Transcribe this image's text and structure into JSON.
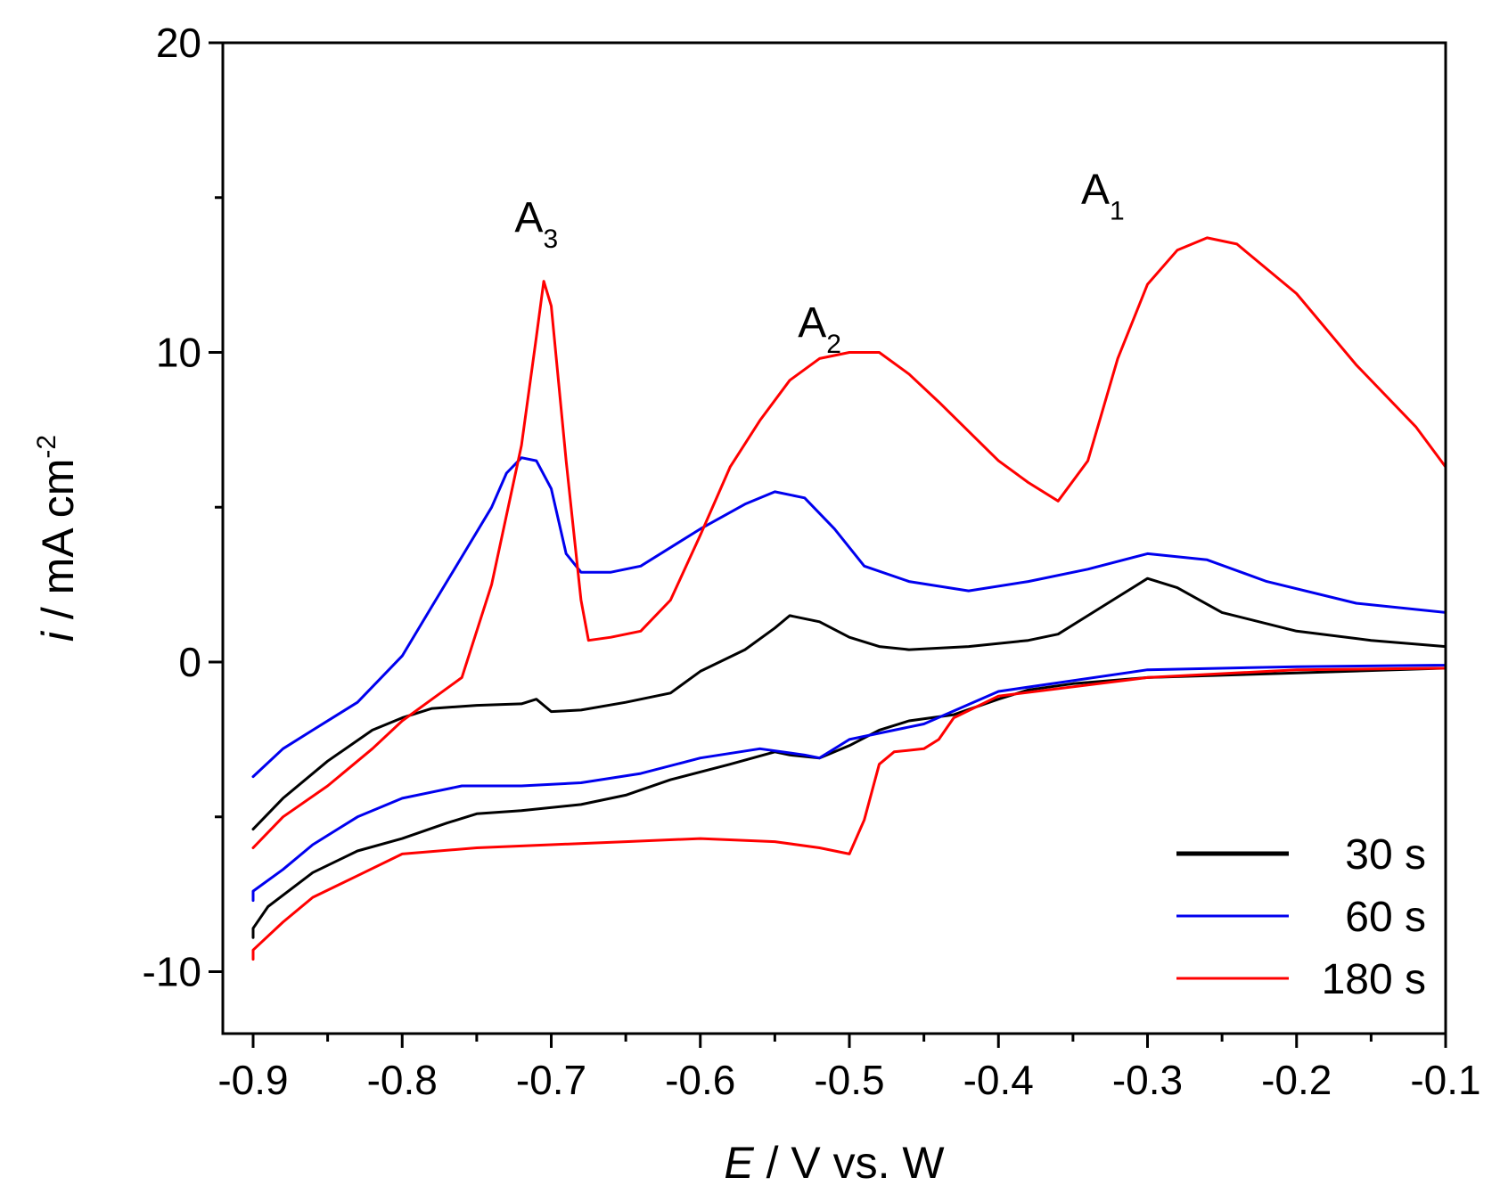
{
  "chart_data": {
    "type": "line",
    "title": "",
    "xlabel": {
      "italic": "E",
      "rest": " / V vs. W"
    },
    "ylabel": {
      "italic": "i",
      "rest": " / mA cm",
      "sup": "-2"
    },
    "xlim": [
      -0.9,
      -0.1
    ],
    "ylim": [
      -12,
      20
    ],
    "xticks": [
      -0.9,
      -0.8,
      -0.7,
      -0.6,
      -0.5,
      -0.4,
      -0.3,
      -0.2,
      -0.1
    ],
    "xtick_labels": [
      "-0.9",
      "-0.8",
      "-0.7",
      "-0.6",
      "-0.5",
      "-0.4",
      "-0.3",
      "-0.2",
      "-0.1"
    ],
    "yticks": [
      -10,
      0,
      10,
      20
    ],
    "ytick_labels": [
      "-10",
      "0",
      "10",
      "20"
    ],
    "grid": false,
    "legend": {
      "position": "bottom-right"
    },
    "annotations": [
      {
        "text": "A",
        "sub": "3",
        "x": -0.71,
        "y": 13.9
      },
      {
        "text": "A",
        "sub": "2",
        "x": -0.52,
        "y": 10.5
      },
      {
        "text": "A",
        "sub": "1",
        "x": -0.33,
        "y": 14.8
      }
    ],
    "series": [
      {
        "name": "30 s",
        "color": "#000000",
        "x": [
          -0.9,
          -0.88,
          -0.85,
          -0.82,
          -0.8,
          -0.78,
          -0.75,
          -0.72,
          -0.71,
          -0.7,
          -0.68,
          -0.65,
          -0.62,
          -0.6,
          -0.57,
          -0.55,
          -0.54,
          -0.52,
          -0.5,
          -0.48,
          -0.46,
          -0.42,
          -0.38,
          -0.36,
          -0.34,
          -0.32,
          -0.3,
          -0.28,
          -0.25,
          -0.2,
          -0.15,
          -0.1,
          -0.1,
          -0.2,
          -0.3,
          -0.35,
          -0.38,
          -0.4,
          -0.43,
          -0.46,
          -0.48,
          -0.5,
          -0.52,
          -0.54,
          -0.55,
          -0.58,
          -0.62,
          -0.65,
          -0.68,
          -0.72,
          -0.75,
          -0.77,
          -0.8,
          -0.83,
          -0.86,
          -0.89,
          -0.9,
          -0.9
        ],
        "y": [
          -5.4,
          -4.4,
          -3.2,
          -2.2,
          -1.8,
          -1.5,
          -1.4,
          -1.35,
          -1.2,
          -1.6,
          -1.55,
          -1.3,
          -1.0,
          -0.3,
          0.4,
          1.1,
          1.5,
          1.3,
          0.8,
          0.5,
          0.4,
          0.5,
          0.7,
          0.9,
          1.5,
          2.1,
          2.7,
          2.4,
          1.6,
          1.0,
          0.7,
          0.5,
          -0.2,
          -0.35,
          -0.5,
          -0.7,
          -0.9,
          -1.2,
          -1.7,
          -1.9,
          -2.2,
          -2.7,
          -3.1,
          -3.0,
          -2.9,
          -3.3,
          -3.8,
          -4.3,
          -4.6,
          -4.8,
          -4.9,
          -5.2,
          -5.7,
          -6.1,
          -6.8,
          -7.9,
          -8.6,
          -8.9
        ]
      },
      {
        "name": "60 s",
        "color": "#0000ee",
        "x": [
          -0.9,
          -0.88,
          -0.86,
          -0.83,
          -0.8,
          -0.78,
          -0.76,
          -0.74,
          -0.73,
          -0.72,
          -0.71,
          -0.7,
          -0.69,
          -0.68,
          -0.66,
          -0.64,
          -0.6,
          -0.57,
          -0.55,
          -0.53,
          -0.51,
          -0.49,
          -0.46,
          -0.42,
          -0.38,
          -0.34,
          -0.3,
          -0.26,
          -0.22,
          -0.16,
          -0.1,
          -0.1,
          -0.2,
          -0.3,
          -0.4,
          -0.45,
          -0.48,
          -0.5,
          -0.52,
          -0.53,
          -0.56,
          -0.6,
          -0.64,
          -0.68,
          -0.72,
          -0.76,
          -0.8,
          -0.83,
          -0.86,
          -0.88,
          -0.9,
          -0.9
        ],
        "y": [
          -3.7,
          -2.8,
          -2.2,
          -1.3,
          0.2,
          1.8,
          3.4,
          5.0,
          6.1,
          6.6,
          6.5,
          5.6,
          3.5,
          2.9,
          2.9,
          3.1,
          4.3,
          5.1,
          5.5,
          5.3,
          4.3,
          3.1,
          2.6,
          2.3,
          2.6,
          3.0,
          3.5,
          3.3,
          2.6,
          1.9,
          1.6,
          -0.1,
          -0.15,
          -0.25,
          -0.95,
          -2.0,
          -2.3,
          -2.5,
          -3.1,
          -3.0,
          -2.8,
          -3.1,
          -3.6,
          -3.9,
          -4.0,
          -4.0,
          -4.4,
          -5.0,
          -5.9,
          -6.7,
          -7.4,
          -7.7
        ]
      },
      {
        "name": "180 s",
        "color": "#ff0000",
        "x": [
          -0.9,
          -0.88,
          -0.85,
          -0.82,
          -0.8,
          -0.78,
          -0.76,
          -0.74,
          -0.72,
          -0.71,
          -0.705,
          -0.7,
          -0.69,
          -0.68,
          -0.675,
          -0.66,
          -0.64,
          -0.62,
          -0.6,
          -0.58,
          -0.56,
          -0.54,
          -0.52,
          -0.5,
          -0.48,
          -0.46,
          -0.44,
          -0.4,
          -0.38,
          -0.36,
          -0.34,
          -0.32,
          -0.3,
          -0.28,
          -0.26,
          -0.24,
          -0.2,
          -0.16,
          -0.12,
          -0.1,
          -0.1,
          -0.2,
          -0.3,
          -0.4,
          -0.43,
          -0.44,
          -0.45,
          -0.47,
          -0.48,
          -0.49,
          -0.5,
          -0.52,
          -0.55,
          -0.6,
          -0.65,
          -0.7,
          -0.75,
          -0.8,
          -0.83,
          -0.86,
          -0.88,
          -0.9,
          -0.9
        ],
        "y": [
          -6.0,
          -5.0,
          -4.0,
          -2.8,
          -1.9,
          -1.2,
          -0.5,
          2.5,
          7.0,
          10.5,
          12.3,
          11.5,
          6.5,
          2.0,
          0.7,
          0.8,
          1.0,
          2.0,
          4.1,
          6.3,
          7.8,
          9.1,
          9.8,
          10.0,
          10.0,
          9.3,
          8.4,
          6.5,
          5.8,
          5.2,
          6.5,
          9.8,
          12.2,
          13.3,
          13.7,
          13.5,
          11.9,
          9.6,
          7.6,
          6.3,
          -0.2,
          -0.25,
          -0.5,
          -1.1,
          -1.8,
          -2.5,
          -2.8,
          -2.9,
          -3.3,
          -5.1,
          -6.2,
          -6.0,
          -5.8,
          -5.7,
          -5.8,
          -5.9,
          -6.0,
          -6.2,
          -6.9,
          -7.6,
          -8.4,
          -9.3,
          -9.6
        ]
      }
    ]
  }
}
